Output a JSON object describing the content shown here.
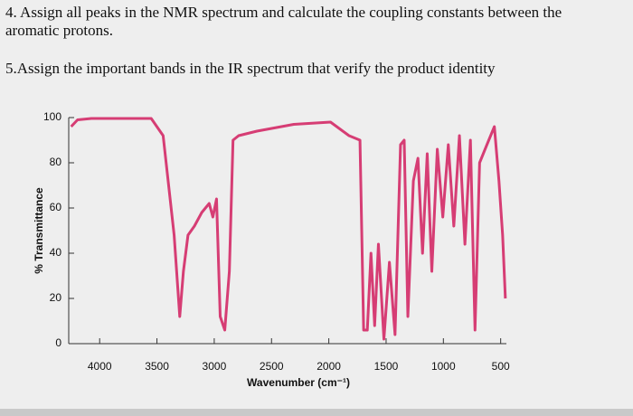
{
  "questions": [
    "4. Assign all peaks in the NMR spectrum and calculate the coupling constants between the aromatic protons.",
    "5.Assign the important bands in the IR spectrum that verify the product identity"
  ],
  "chart_data": {
    "type": "line",
    "x_label": "Wavenumber (cm⁻¹)",
    "y_label": "% Transmittance",
    "xlim": [
      4270,
      450
    ],
    "ylim": [
      0,
      100
    ],
    "xticks": [
      4000,
      3500,
      3000,
      2500,
      2000,
      1500,
      1000,
      500
    ],
    "yticks": [
      0,
      20,
      40,
      60,
      80,
      100
    ],
    "x": [
      4249,
      4193,
      4072,
      3550,
      3446,
      3350,
      3301,
      3269,
      3229,
      3173,
      3109,
      3044,
      3012,
      2980,
      2948,
      2908,
      2868,
      2836,
      2787,
      2627,
      2306,
      1985,
      1824,
      1728,
      1696,
      1664,
      1632,
      1600,
      1567,
      1519,
      1471,
      1422,
      1374,
      1342,
      1310,
      1262,
      1222,
      1182,
      1141,
      1101,
      1053,
      1005,
      957,
      909,
      860,
      812,
      764,
      724,
      684,
      620,
      555,
      515,
      483,
      459
    ],
    "series": [
      {
        "color": "#d63d74",
        "values": [
          96,
          99,
          99.6,
          99.6,
          92,
          48,
          12,
          32,
          48,
          52,
          58,
          62,
          56,
          64,
          12,
          6,
          32,
          90,
          92,
          94,
          97,
          98,
          92,
          90,
          6,
          6,
          40,
          8,
          44,
          2,
          36,
          4,
          88,
          90,
          12,
          72,
          82,
          40,
          84,
          32,
          86,
          56,
          88,
          52,
          92,
          44,
          90,
          6,
          80,
          88,
          96,
          72,
          48,
          20
        ]
      }
    ]
  }
}
